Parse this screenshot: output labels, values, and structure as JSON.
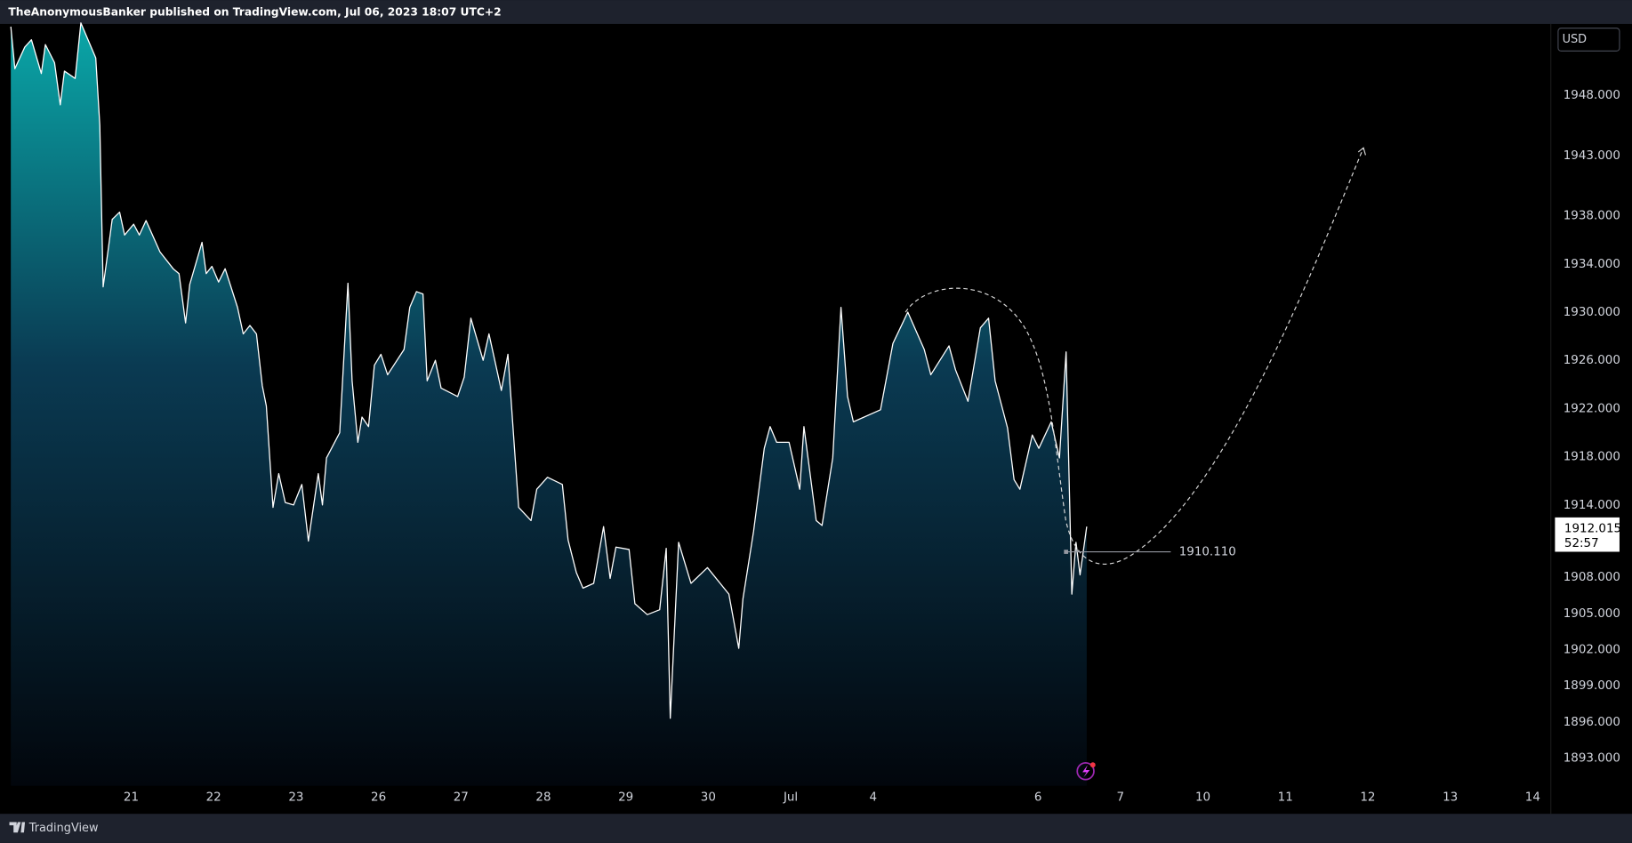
{
  "header": {
    "text": "TheAnonymousBanker published on TradingView.com, Jul 06, 2023 18:07 UTC+2"
  },
  "footer": {
    "brand": "TradingView"
  },
  "chart_data": {
    "type": "area",
    "currency": "USD",
    "color": "#ffffff",
    "x": [
      -1.46,
      -1.41,
      -1.29,
      -1.21,
      -1.09,
      -1.04,
      -0.93,
      -0.86,
      -0.81,
      -0.68,
      -0.61,
      -0.43,
      -0.38,
      -0.34,
      -0.28,
      -0.23,
      -0.14,
      -0.08,
      0.03,
      0.1,
      0.18,
      0.35,
      0.51,
      0.58,
      0.66,
      0.71,
      0.86,
      0.91,
      0.98,
      1.06,
      1.14,
      1.29,
      1.36,
      1.44,
      1.52,
      1.59,
      1.64,
      1.72,
      1.79,
      1.87,
      1.97,
      2.07,
      2.15,
      2.27,
      2.32,
      2.37,
      2.53,
      2.63,
      2.68,
      2.75,
      2.8,
      2.88,
      2.95,
      3.03,
      3.11,
      3.31,
      3.38,
      3.46,
      3.54,
      3.59,
      3.69,
      3.76,
      3.96,
      4.04,
      4.12,
      4.27,
      4.34,
      4.49,
      4.57,
      4.65,
      4.7,
      4.85,
      4.92,
      5.05,
      5.23,
      5.3,
      5.4,
      5.48,
      5.61,
      5.73,
      5.81,
      5.88,
      6.04,
      6.11,
      6.26,
      6.41,
      6.49,
      6.54,
      6.64,
      6.79,
      6.99,
      7.25,
      7.37,
      7.42,
      7.55,
      7.68,
      7.75,
      7.83,
      7.98,
      8.11,
      8.16,
      8.31,
      8.38,
      8.51,
      8.61,
      8.69,
      8.76,
      9.09,
      9.24,
      9.42,
      9.62,
      9.7,
      9.92,
      10.0,
      10.15,
      10.3,
      10.4,
      10.48,
      10.63,
      10.71,
      10.78,
      10.93,
      11.01,
      11.16,
      11.26,
      11.34,
      11.41,
      11.46,
      11.51,
      11.59
    ],
    "values": [
      1953.7,
      1950.2,
      1952.0,
      1952.6,
      1949.8,
      1952.2,
      1950.7,
      1947.2,
      1950.0,
      1949.4,
      1954.0,
      1951.1,
      1945.5,
      1932.1,
      1935.1,
      1937.7,
      1938.3,
      1936.4,
      1937.3,
      1936.4,
      1937.6,
      1935.0,
      1933.6,
      1933.2,
      1929.1,
      1932.3,
      1935.8,
      1933.2,
      1933.8,
      1932.5,
      1933.6,
      1930.4,
      1928.2,
      1928.9,
      1928.2,
      1923.9,
      1922.2,
      1913.8,
      1916.6,
      1914.2,
      1914.0,
      1915.7,
      1911.0,
      1916.6,
      1914.0,
      1917.9,
      1920.0,
      1932.4,
      1924.3,
      1919.2,
      1921.3,
      1920.5,
      1925.6,
      1926.5,
      1924.8,
      1926.9,
      1930.4,
      1931.7,
      1931.5,
      1924.3,
      1926.0,
      1923.7,
      1923.0,
      1924.6,
      1929.5,
      1926.0,
      1928.2,
      1923.5,
      1926.5,
      1918.7,
      1913.8,
      1912.7,
      1915.3,
      1916.3,
      1915.7,
      1911.1,
      1908.4,
      1907.1,
      1907.5,
      1912.2,
      1907.9,
      1910.5,
      1910.3,
      1905.8,
      1904.9,
      1905.3,
      1910.4,
      1896.3,
      1910.9,
      1907.5,
      1908.8,
      1906.6,
      1902.1,
      1906.2,
      1911.8,
      1918.7,
      1920.5,
      1919.2,
      1919.2,
      1915.3,
      1920.5,
      1912.7,
      1912.3,
      1917.9,
      1930.4,
      1923.0,
      1920.9,
      1921.9,
      1927.4,
      1930.0,
      1926.9,
      1924.8,
      1927.2,
      1925.2,
      1922.6,
      1928.7,
      1929.5,
      1924.3,
      1920.4,
      1916.1,
      1915.3,
      1919.8,
      1918.7,
      1920.9,
      1917.9,
      1926.7,
      1906.6,
      1910.9,
      1908.2,
      1912.2
    ],
    "xlim": [
      -1.49,
      17.22
    ],
    "xticks": [
      {
        "value": 0,
        "label": "21"
      },
      {
        "value": 1,
        "label": "22"
      },
      {
        "value": 2,
        "label": "23"
      },
      {
        "value": 3,
        "label": "26"
      },
      {
        "value": 4,
        "label": "27"
      },
      {
        "value": 5,
        "label": "28"
      },
      {
        "value": 6,
        "label": "29"
      },
      {
        "value": 7,
        "label": "30"
      },
      {
        "value": 8,
        "label": "Jul"
      },
      {
        "value": 9,
        "label": "4"
      },
      {
        "value": 11,
        "label": "6"
      },
      {
        "value": 12,
        "label": "7"
      },
      {
        "value": 13,
        "label": "10"
      },
      {
        "value": 14,
        "label": "11"
      },
      {
        "value": 15,
        "label": "12"
      },
      {
        "value": 16,
        "label": "13"
      },
      {
        "value": 17,
        "label": "14"
      }
    ],
    "ylim": [
      1890.7,
      1954
    ],
    "yticks": [
      {
        "value": 1948,
        "label": "1948.000"
      },
      {
        "value": 1943,
        "label": "1943.000"
      },
      {
        "value": 1938,
        "label": "1938.000"
      },
      {
        "value": 1934,
        "label": "1934.000"
      },
      {
        "value": 1930,
        "label": "1930.000"
      },
      {
        "value": 1926,
        "label": "1926.000"
      },
      {
        "value": 1922,
        "label": "1922.000"
      },
      {
        "value": 1918,
        "label": "1918.000"
      },
      {
        "value": 1914,
        "label": "1914.000"
      },
      {
        "value": 1908,
        "label": "1908.000"
      },
      {
        "value": 1905,
        "label": "1905.000"
      },
      {
        "value": 1902,
        "label": "1902.000"
      },
      {
        "value": 1899,
        "label": "1899.000"
      },
      {
        "value": 1896,
        "label": "1896.000"
      },
      {
        "value": 1893,
        "label": "1893.000"
      }
    ],
    "grid": false,
    "price_line": {
      "value": 1910.11,
      "label": "1910.110",
      "x": [
        11.34,
        12.61
      ]
    },
    "last_price": {
      "value": 1912.015,
      "label": "1912.015",
      "countdown": "52:57"
    }
  }
}
